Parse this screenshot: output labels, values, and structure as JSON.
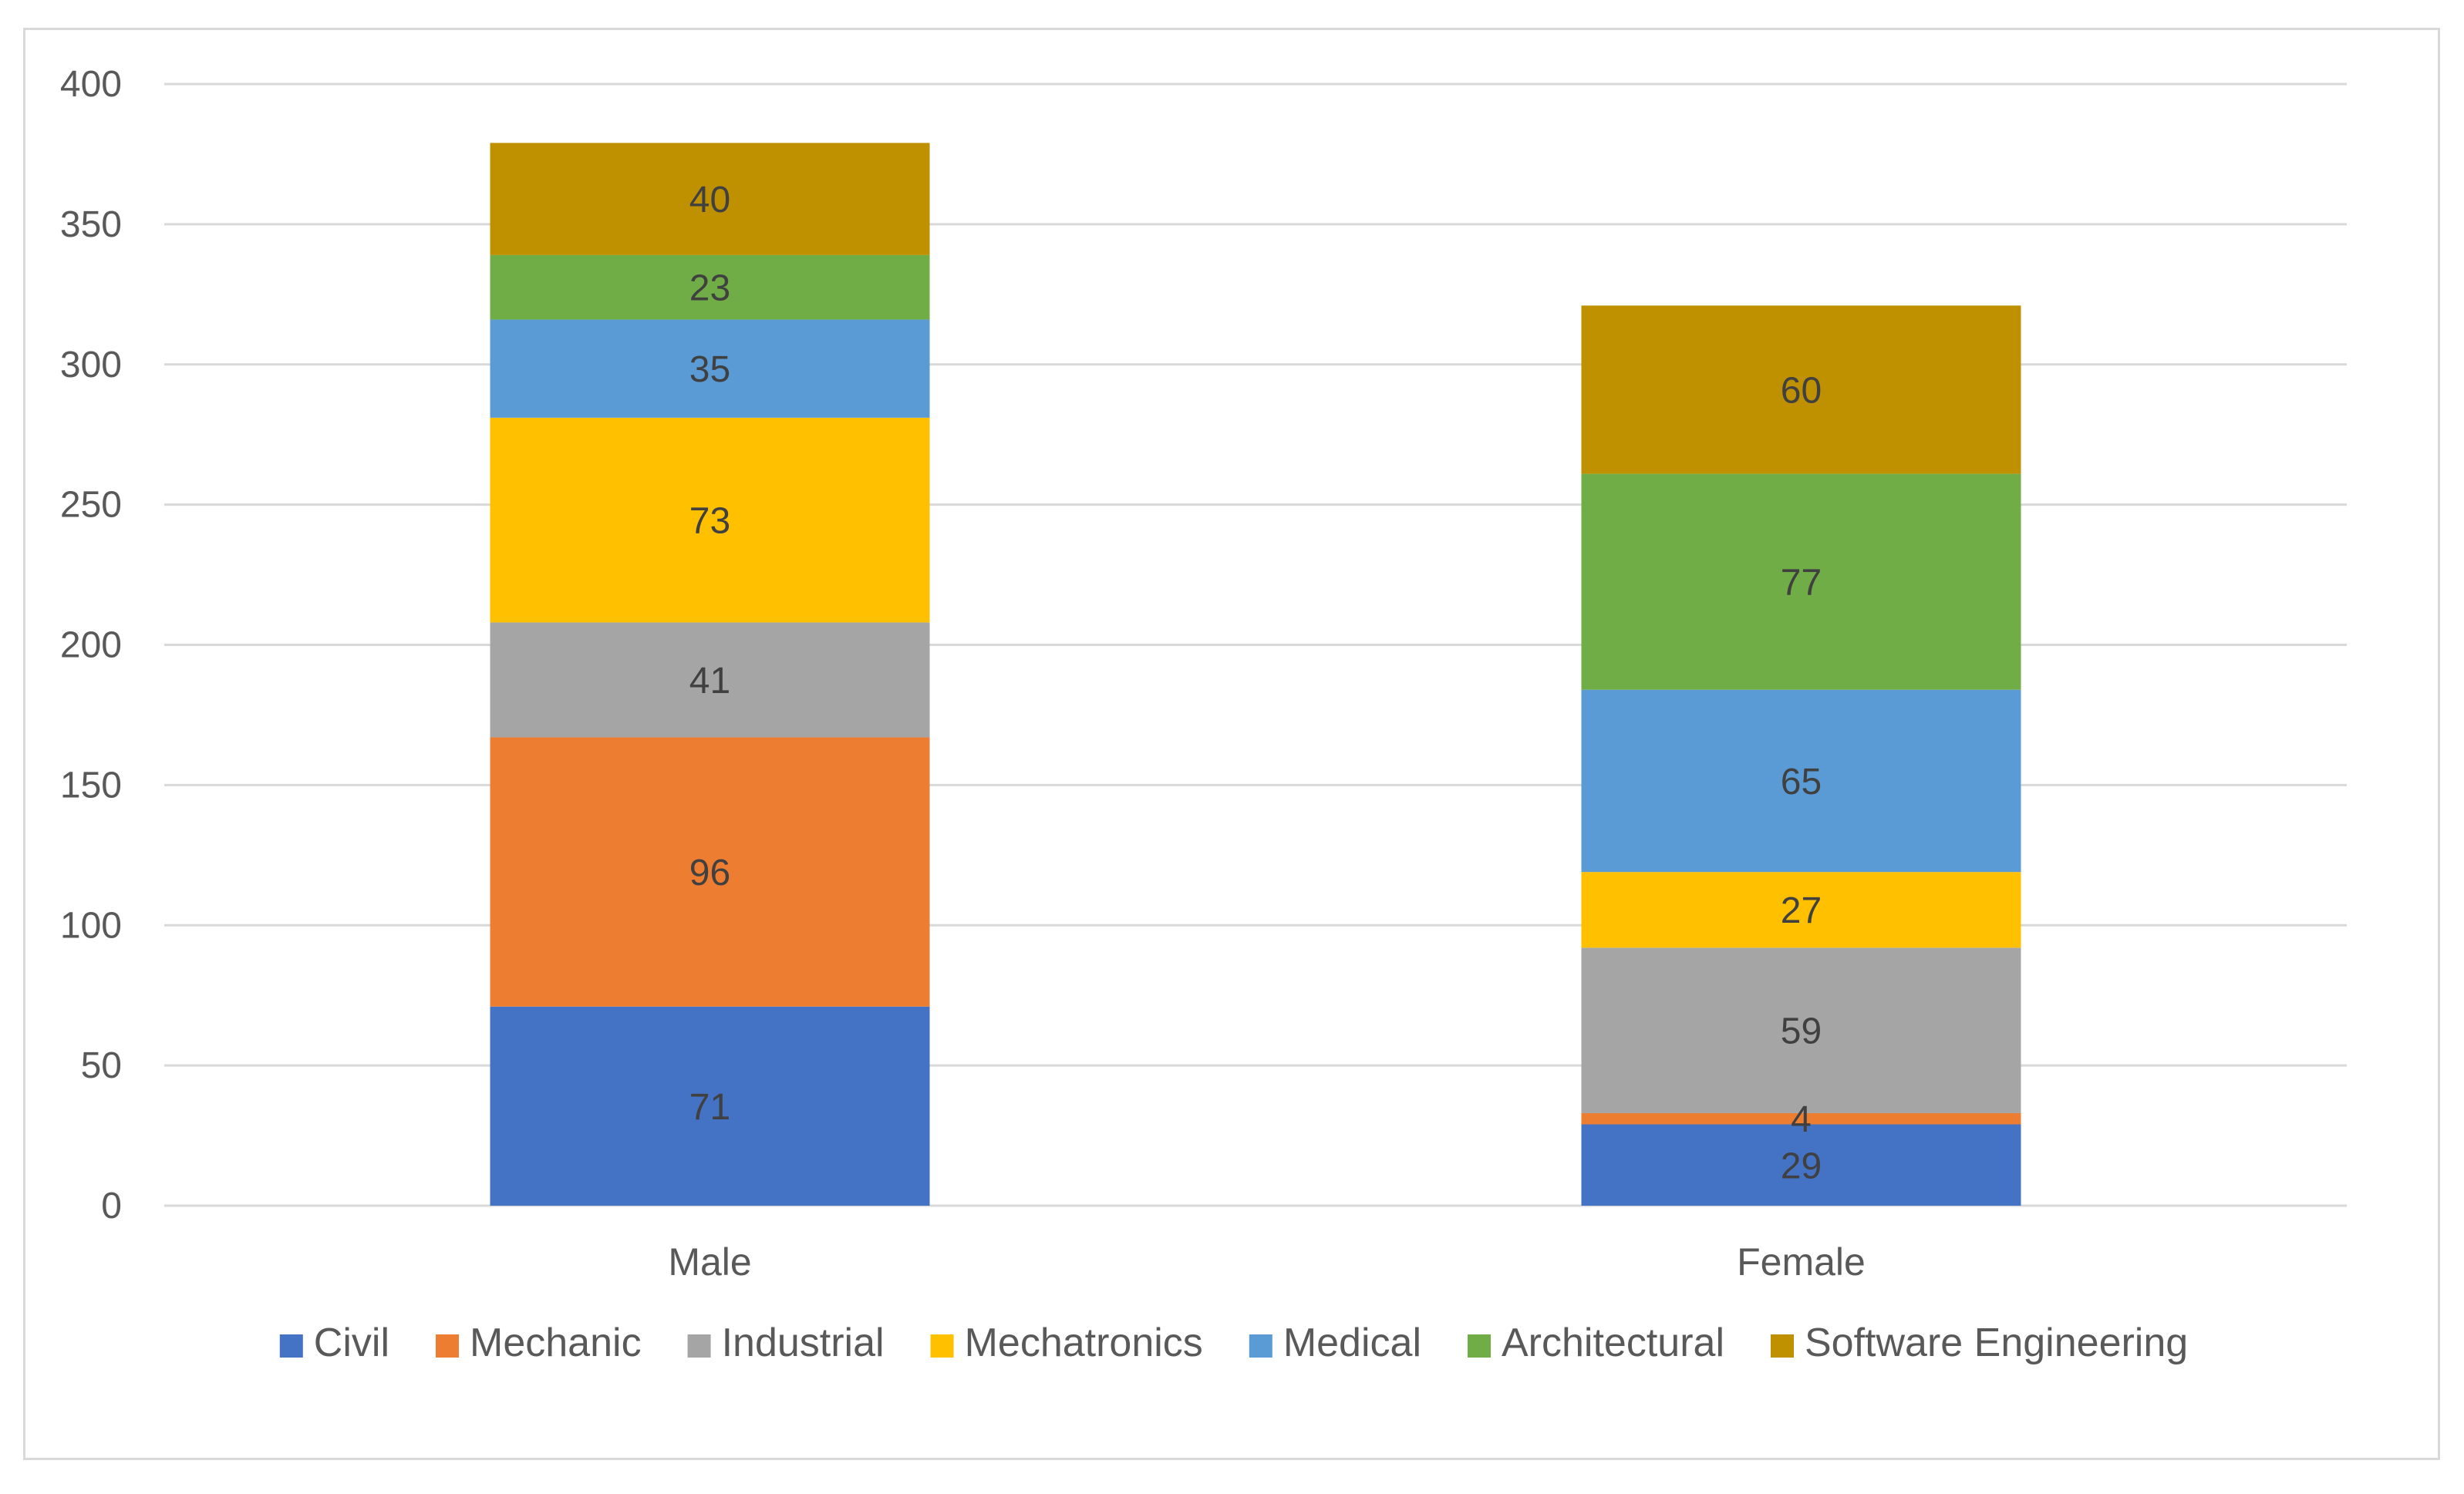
{
  "chart_data": {
    "type": "bar",
    "stacked": true,
    "categories": [
      "Male",
      "Female"
    ],
    "series": [
      {
        "name": "Civil",
        "values": [
          71,
          29
        ],
        "color": "#4472c4"
      },
      {
        "name": "Mechanic",
        "values": [
          96,
          4
        ],
        "color": "#ed7d31"
      },
      {
        "name": "Industrial",
        "values": [
          41,
          59
        ],
        "color": "#a5a5a5"
      },
      {
        "name": "Mechatronics",
        "values": [
          73,
          27
        ],
        "color": "#ffc000"
      },
      {
        "name": "Medical",
        "values": [
          35,
          65
        ],
        "color": "#5b9bd5"
      },
      {
        "name": "Architectural",
        "values": [
          23,
          77
        ],
        "color": "#70ad47"
      },
      {
        "name": "Software Engineering",
        "values": [
          40,
          60
        ],
        "color": "#bf9000"
      }
    ],
    "ylim": [
      0,
      400
    ],
    "yticks": [
      0,
      50,
      100,
      150,
      200,
      250,
      300,
      350,
      400
    ],
    "grid": true,
    "legend": "bottom",
    "data_labels": true
  }
}
